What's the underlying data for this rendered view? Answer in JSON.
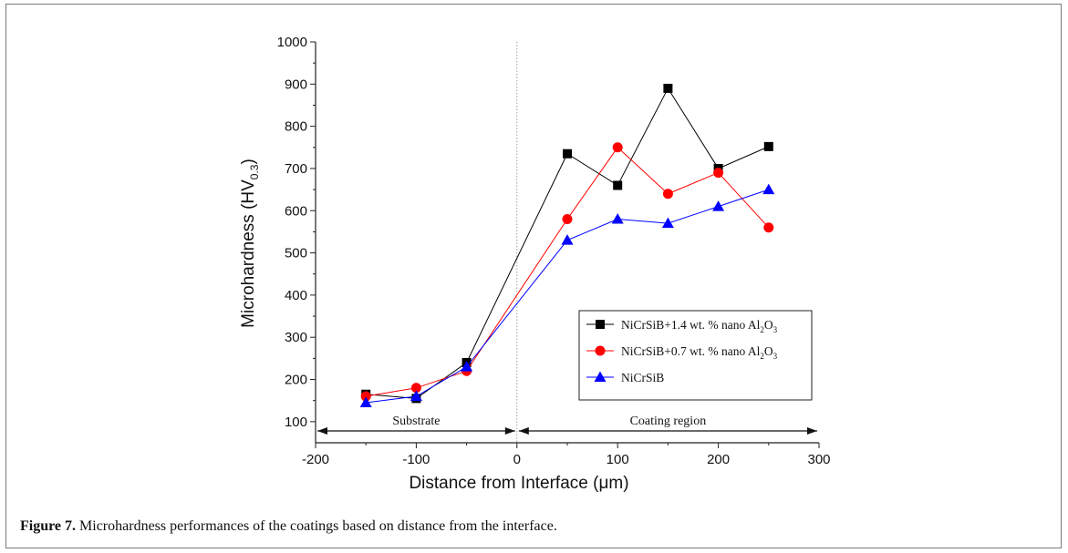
{
  "caption": {
    "label": "Figure 7.",
    "text": " Microhardness performances of the coatings based on distance from the interface."
  },
  "chart_data": {
    "type": "line",
    "xlabel": "Distance from Interface (μm)",
    "ylabel": "Microhardness (HV",
    "ylabel_sub": "0.3",
    "ylabel_end": ")",
    "xlim": [
      -200,
      300
    ],
    "ylim": [
      50,
      1000
    ],
    "xticks": [
      -200,
      -100,
      0,
      100,
      200,
      300
    ],
    "yticks": [
      100,
      200,
      300,
      400,
      500,
      600,
      700,
      800,
      900,
      1000
    ],
    "x": [
      -150,
      -100,
      -50,
      50,
      100,
      150,
      200,
      250
    ],
    "series": [
      {
        "name": "NiCrSiB+1.4 wt. % nano Al",
        "name_sub": "2",
        "name_mid": "O",
        "name_sub2": "3",
        "color": "#000000",
        "marker": "square",
        "values": [
          165,
          155,
          240,
          735,
          660,
          890,
          700,
          752
        ]
      },
      {
        "name": "NiCrSiB+0.7 wt. % nano Al",
        "name_sub": "2",
        "name_mid": "O",
        "name_sub2": "3",
        "color": "#ff0000",
        "marker": "circle",
        "values": [
          160,
          180,
          220,
          580,
          750,
          640,
          690,
          560
        ]
      },
      {
        "name": "NiCrSiB",
        "color": "#0000ff",
        "marker": "triangle",
        "values": [
          145,
          160,
          230,
          530,
          580,
          570,
          610,
          650
        ]
      }
    ],
    "region_labels": {
      "left": "Substrate",
      "right": "Coating region"
    },
    "divider_x": 0,
    "legend_position": "lower-right"
  }
}
